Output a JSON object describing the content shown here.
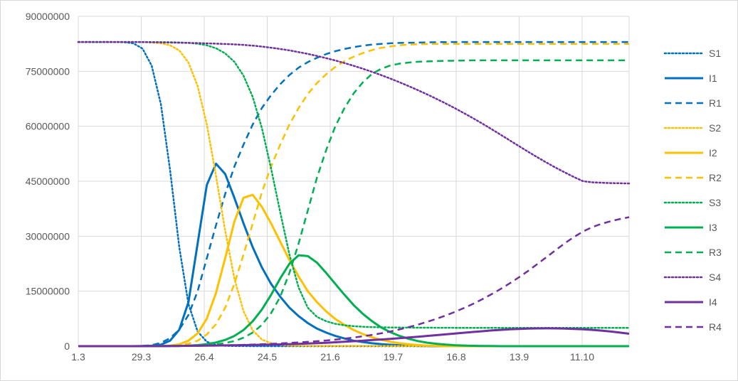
{
  "chart_data": {
    "type": "line",
    "title": "",
    "xlabel": "",
    "ylabel": "",
    "ylim": [
      0,
      90000000
    ],
    "y_ticks": [
      "0",
      "15000000",
      "30000000",
      "45000000",
      "60000000",
      "75000000",
      "90000000"
    ],
    "x_ticks": [
      "1.3",
      "29.3",
      "26.4",
      "24.5",
      "21.6",
      "19.7",
      "16.8",
      "13.9",
      "11.10"
    ],
    "grid": "vertical and horizontal major gridlines",
    "legend_position": "right",
    "population": 83000000,
    "series": [
      {
        "name": "S1",
        "color": "#0070C0",
        "style": "dotted",
        "values": [
          83000000,
          83000000,
          82999000,
          82996000,
          82985000,
          82930000,
          82650000,
          81200000,
          76500000,
          66000000,
          48000000,
          27000000,
          11500000,
          4000000,
          1200000,
          320000,
          100000,
          30000,
          10000,
          5000,
          2000,
          1000,
          500,
          200,
          100,
          100,
          100,
          100,
          100,
          100,
          100,
          100,
          100,
          100,
          100,
          100,
          100,
          100,
          100,
          100,
          100,
          100,
          100,
          100,
          100,
          100,
          100,
          100,
          100,
          100,
          100,
          100,
          100,
          100,
          100,
          100,
          100,
          100,
          100,
          100,
          100
        ]
      },
      {
        "name": "I1",
        "color": "#0070C0",
        "style": "solid",
        "values": [
          0,
          0,
          0,
          0,
          0,
          0,
          0,
          30000,
          120000,
          400000,
          1500000,
          4500000,
          12000000,
          28000000,
          44000000,
          49800000,
          47000000,
          40500000,
          33500000,
          27000000,
          21500000,
          17000000,
          13500000,
          10500000,
          8200000,
          6300000,
          4800000,
          3700000,
          2800000,
          2100000,
          1500000,
          1100000,
          800000,
          560000,
          380000,
          250000,
          150000,
          80000,
          40000,
          0,
          0,
          0,
          0,
          0,
          0,
          0,
          0,
          0,
          0,
          0,
          0,
          0,
          0,
          0,
          0,
          0,
          0,
          0,
          0,
          0,
          0
        ]
      },
      {
        "name": "R1",
        "color": "#0070C0",
        "style": "dashed",
        "values": [
          0,
          0,
          0,
          0,
          0,
          0,
          20000,
          80000,
          300000,
          900000,
          2200000,
          4500000,
          8500000,
          15000000,
          24000000,
          33000000,
          41500000,
          49000000,
          55000000,
          60500000,
          65000000,
          68500000,
          71500000,
          74000000,
          76000000,
          77500000,
          78700000,
          79700000,
          80500000,
          81100000,
          81600000,
          82000000,
          82300000,
          82500000,
          82650000,
          82750000,
          82800000,
          82850000,
          82900000,
          82950000,
          82980000,
          82990000,
          83000000,
          83000000,
          83000000,
          83000000,
          83000000,
          83000000,
          83000000,
          83000000,
          83000000,
          83000000,
          83000000,
          83000000,
          83000000,
          83000000,
          83000000,
          83000000,
          83000000,
          83000000,
          83000000
        ]
      },
      {
        "name": "S2",
        "color": "#FFC000",
        "style": "dotted",
        "values": [
          83000000,
          83000000,
          83000000,
          82999000,
          82997000,
          82992000,
          82980000,
          82950000,
          82870000,
          82650000,
          82100000,
          80700000,
          77400000,
          71000000,
          60500000,
          46500000,
          31500000,
          18500000,
          9500000,
          4300000,
          1800000,
          800000,
          350000,
          160000,
          90000,
          60000,
          45000,
          38000,
          34000,
          32000,
          31000,
          30500,
          30200,
          30100,
          30000,
          30000,
          30000,
          30000,
          30000,
          30000,
          30000,
          30000,
          30000,
          30000,
          30000,
          30000,
          30000,
          30000,
          30000,
          30000,
          30000,
          30000,
          30000,
          30000,
          30000,
          30000,
          30000,
          30000,
          30000,
          30000,
          30000
        ]
      },
      {
        "name": "I2",
        "color": "#FFC000",
        "style": "solid",
        "values": [
          0,
          0,
          0,
          0,
          0,
          0,
          0,
          0,
          10000,
          50000,
          150000,
          500000,
          1500000,
          3500000,
          7500000,
          14500000,
          24000000,
          34000000,
          40500000,
          41300000,
          38000000,
          33500000,
          28500000,
          23500000,
          19000000,
          15000000,
          12000000,
          9500000,
          7400000,
          5800000,
          4400000,
          3300000,
          2400000,
          1700000,
          1200000,
          800000,
          500000,
          300000,
          150000,
          60000,
          0,
          0,
          0,
          0,
          0,
          0,
          0,
          0,
          0,
          0,
          0,
          0,
          0,
          0,
          0,
          0,
          0,
          0,
          0,
          0,
          0
        ]
      },
      {
        "name": "R2",
        "color": "#FFC000",
        "style": "dashed",
        "values": [
          0,
          0,
          0,
          0,
          0,
          0,
          0,
          0,
          0,
          20000,
          80000,
          250000,
          650000,
          1500000,
          3200000,
          6000000,
          10500000,
          17000000,
          25000000,
          33500000,
          42000000,
          49000000,
          55000000,
          60500000,
          65000000,
          68800000,
          71800000,
          74200000,
          76200000,
          77800000,
          79000000,
          80000000,
          80800000,
          81400000,
          81800000,
          82100000,
          82300000,
          82400000,
          82450000,
          82500000,
          82500000,
          82500000,
          82500000,
          82500000,
          82500000,
          82500000,
          82500000,
          82500000,
          82500000,
          82500000,
          82500000,
          82500000,
          82500000,
          82500000,
          82500000,
          82500000,
          82500000,
          82500000,
          82500000,
          82500000,
          82500000
        ]
      },
      {
        "name": "S3",
        "color": "#00B050",
        "style": "dotted",
        "values": [
          83000000,
          83000000,
          83000000,
          83000000,
          83000000,
          82999000,
          82997000,
          82993000,
          82985000,
          82970000,
          82940000,
          82880000,
          82760000,
          82530000,
          82100000,
          81300000,
          79900000,
          77600000,
          73800000,
          68000000,
          59500000,
          48500000,
          36500000,
          25000000,
          16000000,
          10500000,
          8000000,
          6800000,
          6100000,
          5700000,
          5450000,
          5300000,
          5200000,
          5150000,
          5100000,
          5080000,
          5060000,
          5050000,
          5040000,
          5030000,
          5020000,
          5010000,
          5000000,
          5000000,
          5000000,
          5000000,
          5000000,
          5000000,
          5000000,
          5000000,
          5000000,
          5000000,
          5000000,
          5000000,
          5000000,
          5000000,
          5000000,
          5000000,
          5000000,
          5000000,
          5000000
        ]
      },
      {
        "name": "I3",
        "color": "#00B050",
        "style": "solid",
        "values": [
          0,
          0,
          0,
          0,
          0,
          0,
          0,
          0,
          0,
          10000,
          30000,
          70000,
          150000,
          300000,
          550000,
          1000000,
          1700000,
          2800000,
          4400000,
          6800000,
          10000000,
          14000000,
          18500000,
          22500000,
          24800000,
          24600000,
          22800000,
          20000000,
          17000000,
          14000000,
          11200000,
          8800000,
          6800000,
          5100000,
          3800000,
          2800000,
          2000000,
          1400000,
          950000,
          650000,
          420000,
          270000,
          170000,
          100000,
          60000,
          30000,
          0,
          0,
          0,
          0,
          0,
          0,
          0,
          0,
          0,
          0,
          0,
          0,
          0,
          0,
          0
        ]
      },
      {
        "name": "R3",
        "color": "#00B050",
        "style": "dashed",
        "values": [
          0,
          0,
          0,
          0,
          0,
          0,
          0,
          0,
          0,
          0,
          10000,
          30000,
          80000,
          150000,
          280000,
          500000,
          850000,
          1400000,
          2300000,
          3700000,
          5800000,
          9000000,
          13500000,
          20000000,
          28000000,
          37000000,
          46000000,
          53500000,
          60000000,
          65000000,
          69000000,
          72000000,
          74300000,
          75700000,
          76600000,
          77100000,
          77400000,
          77600000,
          77700000,
          77800000,
          77850000,
          77900000,
          77950000,
          78000000,
          78000000,
          78000000,
          78000000,
          78000000,
          78000000,
          78000000,
          78000000,
          78000000,
          78000000,
          78000000,
          78000000,
          78000000,
          78000000,
          78000000,
          78000000,
          78000000,
          78000000
        ]
      },
      {
        "name": "S4",
        "color": "#7030A0",
        "style": "dotted",
        "values": [
          83000000,
          83000000,
          83000000,
          83000000,
          83000000,
          83000000,
          82990000,
          82970000,
          82940000,
          82900000,
          82850000,
          82800000,
          82750000,
          82700000,
          82630000,
          82550000,
          82450000,
          82350000,
          82200000,
          82000000,
          81750000,
          81450000,
          81100000,
          80700000,
          80250000,
          79750000,
          79200000,
          78600000,
          77950000,
          77250000,
          76500000,
          75700000,
          74850000,
          73950000,
          73000000,
          72000000,
          70950000,
          69850000,
          68700000,
          67500000,
          66250000,
          64950000,
          63600000,
          62200000,
          60750000,
          59250000,
          57700000,
          56150000,
          54600000,
          53050000,
          51550000,
          50100000,
          48700000,
          47400000,
          46150000,
          45000000,
          44700000,
          44600000,
          44500000,
          44450000,
          44400000
        ]
      },
      {
        "name": "I4",
        "color": "#7030A0",
        "style": "solid",
        "values": [
          0,
          0,
          0,
          0,
          0,
          0,
          0,
          0,
          10000,
          20000,
          40000,
          60000,
          90000,
          120000,
          150000,
          180000,
          210000,
          250000,
          290000,
          330000,
          380000,
          430000,
          490000,
          560000,
          640000,
          730000,
          830000,
          940000,
          1060000,
          1200000,
          1350000,
          1500000,
          1660000,
          1830000,
          2000000,
          2180000,
          2380000,
          2580000,
          2790000,
          3000000,
          3220000,
          3440000,
          3660000,
          3880000,
          4080000,
          4280000,
          4450000,
          4600000,
          4720000,
          4800000,
          4850000,
          4870000,
          4850000,
          4800000,
          4720000,
          4600000,
          4450000,
          4250000,
          4000000,
          3700000,
          3400000
        ]
      },
      {
        "name": "R4",
        "color": "#7030A0",
        "style": "dashed",
        "values": [
          0,
          0,
          0,
          0,
          0,
          0,
          0,
          0,
          0,
          10000,
          20000,
          40000,
          70000,
          100000,
          140000,
          190000,
          240000,
          300000,
          370000,
          450000,
          540000,
          640000,
          750000,
          880000,
          1020000,
          1180000,
          1360000,
          1560000,
          1790000,
          2050000,
          2350000,
          2690000,
          3080000,
          3520000,
          4020000,
          4580000,
          5200000,
          5880000,
          6630000,
          7450000,
          8350000,
          9330000,
          10400000,
          11550000,
          12800000,
          14150000,
          15600000,
          17150000,
          18800000,
          20550000,
          22400000,
          24300000,
          26200000,
          28100000,
          29800000,
          31300000,
          32500000,
          33400000,
          34100000,
          34700000,
          35200000
        ]
      }
    ]
  }
}
